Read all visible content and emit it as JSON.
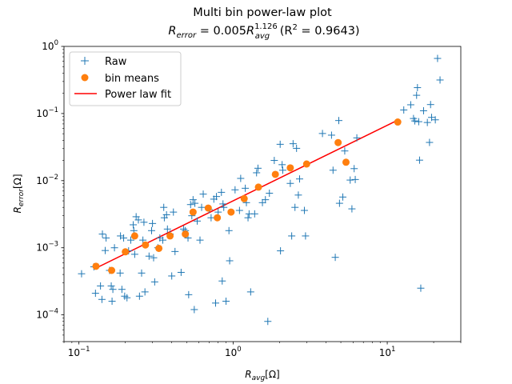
{
  "chart_data": {
    "type": "scatter",
    "title_line1": "Multi bin power-law plot",
    "title_line2": {
      "lhs_main": "R",
      "lhs_sub": "error",
      "eq": " = 0.005",
      "rhs_main": "R",
      "rhs_sub": "avg",
      "rhs_sup": "1.126",
      "r2_text": " (R",
      "r2_sup": "2",
      "r2_tail": " = 0.9643)"
    },
    "xlabel": {
      "main": "R",
      "sub": "avg",
      "unit": "[Ω]"
    },
    "ylabel": {
      "main": "R",
      "sub": "error",
      "unit": "[Ω]"
    },
    "xscale": "log",
    "yscale": "log",
    "xlim": [
      0.08,
      30
    ],
    "ylim": [
      4e-05,
      1
    ],
    "x_ticks": [
      {
        "value": 0.1,
        "base": "10",
        "exp": "−1"
      },
      {
        "value": 1,
        "base": "10",
        "exp": "0"
      },
      {
        "value": 10,
        "base": "10",
        "exp": "1"
      }
    ],
    "y_ticks": [
      {
        "value": 0.0001,
        "base": "10",
        "exp": "−4"
      },
      {
        "value": 0.001,
        "base": "10",
        "exp": "−3"
      },
      {
        "value": 0.01,
        "base": "10",
        "exp": "−2"
      },
      {
        "value": 0.1,
        "base": "10",
        "exp": "−1"
      },
      {
        "value": 1,
        "base": "10",
        "exp": "0"
      }
    ],
    "grid": false,
    "legend_position": "top-left",
    "legend": [
      "Raw",
      "bin means",
      "Power law fit"
    ],
    "colors": {
      "raw": "#1f77b4",
      "bin_means": "#ff7f0e",
      "fit": "#ff0000"
    },
    "raw_points": [
      [
        0.104,
        0.00041
      ],
      [
        0.125,
        0.00052
      ],
      [
        0.128,
        0.00021
      ],
      [
        0.138,
        0.00027
      ],
      [
        0.141,
        0.00017
      ],
      [
        0.142,
        0.0016
      ],
      [
        0.148,
        0.00091
      ],
      [
        0.15,
        0.0014
      ],
      [
        0.158,
        0.00046
      ],
      [
        0.162,
        0.00027
      ],
      [
        0.164,
        0.00016
      ],
      [
        0.166,
        0.00024
      ],
      [
        0.17,
        0.001
      ],
      [
        0.185,
        0.00042
      ],
      [
        0.186,
        0.0015
      ],
      [
        0.19,
        0.00024
      ],
      [
        0.195,
        0.0014
      ],
      [
        0.198,
        0.00019
      ],
      [
        0.205,
        0.00018
      ],
      [
        0.21,
        0.0009
      ],
      [
        0.217,
        0.0013
      ],
      [
        0.225,
        0.0022
      ],
      [
        0.227,
        0.0018
      ],
      [
        0.23,
        0.0008
      ],
      [
        0.235,
        0.0029
      ],
      [
        0.243,
        0.0026
      ],
      [
        0.247,
        0.00019
      ],
      [
        0.255,
        0.00042
      ],
      [
        0.26,
        0.0013
      ],
      [
        0.264,
        0.0024
      ],
      [
        0.268,
        0.00022
      ],
      [
        0.285,
        0.00075
      ],
      [
        0.296,
        0.0018
      ],
      [
        0.3,
        0.0023
      ],
      [
        0.305,
        0.00071
      ],
      [
        0.31,
        0.00031
      ],
      [
        0.325,
        0.001
      ],
      [
        0.335,
        0.0014
      ],
      [
        0.35,
        0.0013
      ],
      [
        0.355,
        0.004
      ],
      [
        0.358,
        0.0028
      ],
      [
        0.37,
        0.0031
      ],
      [
        0.375,
        0.0019
      ],
      [
        0.39,
        0.0016
      ],
      [
        0.4,
        0.00038
      ],
      [
        0.41,
        0.0034
      ],
      [
        0.42,
        0.00088
      ],
      [
        0.46,
        0.00043
      ],
      [
        0.478,
        0.0019
      ],
      [
        0.49,
        0.0018
      ],
      [
        0.51,
        0.0014
      ],
      [
        0.515,
        0.0002
      ],
      [
        0.53,
        0.0044
      ],
      [
        0.54,
        0.003
      ],
      [
        0.55,
        0.0052
      ],
      [
        0.56,
        0.00012
      ],
      [
        0.565,
        0.0046
      ],
      [
        0.585,
        0.0025
      ],
      [
        0.61,
        0.0013
      ],
      [
        0.625,
        0.004
      ],
      [
        0.64,
        0.0063
      ],
      [
        0.7,
        0.0037
      ],
      [
        0.72,
        0.0028
      ],
      [
        0.75,
        0.0053
      ],
      [
        0.77,
        0.00015
      ],
      [
        0.78,
        0.0058
      ],
      [
        0.8,
        0.0034
      ],
      [
        0.84,
        0.0067
      ],
      [
        0.85,
        0.00032
      ],
      [
        0.86,
        0.0045
      ],
      [
        0.87,
        0.004
      ],
      [
        0.9,
        0.00016
      ],
      [
        0.94,
        0.0018
      ],
      [
        0.95,
        0.00064
      ],
      [
        1.03,
        0.0073
      ],
      [
        1.1,
        0.0036
      ],
      [
        1.12,
        0.0108
      ],
      [
        1.2,
        0.0077
      ],
      [
        1.22,
        0.0047
      ],
      [
        1.25,
        0.0028
      ],
      [
        1.27,
        0.0032
      ],
      [
        1.3,
        0.00022
      ],
      [
        1.38,
        0.0032
      ],
      [
        1.42,
        0.0131
      ],
      [
        1.45,
        0.0153
      ],
      [
        1.55,
        0.0047
      ],
      [
        1.62,
        0.0052
      ],
      [
        1.68,
        8e-05
      ],
      [
        1.72,
        0.0065
      ],
      [
        1.85,
        0.02
      ],
      [
        2.02,
        0.0348
      ],
      [
        2.03,
        0.0009
      ],
      [
        2.08,
        0.0173
      ],
      [
        2.1,
        0.0143
      ],
      [
        2.35,
        0.0091
      ],
      [
        2.4,
        0.0015
      ],
      [
        2.45,
        0.0355
      ],
      [
        2.52,
        0.004
      ],
      [
        2.58,
        0.0303
      ],
      [
        2.65,
        0.0061
      ],
      [
        2.7,
        0.0106
      ],
      [
        2.9,
        0.0036
      ],
      [
        2.95,
        0.0015
      ],
      [
        3.8,
        0.0504
      ],
      [
        4.35,
        0.0476
      ],
      [
        4.45,
        0.0143
      ],
      [
        4.6,
        0.00072
      ],
      [
        4.85,
        0.0786
      ],
      [
        4.9,
        0.0046
      ],
      [
        5.15,
        0.0057
      ],
      [
        5.3,
        0.0277
      ],
      [
        5.75,
        0.0102
      ],
      [
        5.9,
        0.0038
      ],
      [
        6.1,
        0.0151
      ],
      [
        6.2,
        0.0104
      ],
      [
        6.35,
        0.0434
      ],
      [
        12.8,
        0.113
      ],
      [
        14.2,
        0.135
      ],
      [
        14.8,
        0.0843
      ],
      [
        15.1,
        0.0776
      ],
      [
        15.5,
        0.187
      ],
      [
        15.7,
        0.243
      ],
      [
        16.0,
        0.0756
      ],
      [
        16.2,
        0.0202
      ],
      [
        16.5,
        0.00025
      ],
      [
        17.2,
        0.11
      ],
      [
        18.2,
        0.0735
      ],
      [
        18.8,
        0.0371
      ],
      [
        19.1,
        0.136
      ],
      [
        19.4,
        0.0876
      ],
      [
        20.5,
        0.0806
      ],
      [
        21.2,
        0.662
      ],
      [
        22.0,
        0.316
      ]
    ],
    "bin_means": [
      [
        0.129,
        0.00053
      ],
      [
        0.163,
        0.00046
      ],
      [
        0.2,
        0.00087
      ],
      [
        0.23,
        0.0015
      ],
      [
        0.27,
        0.0011
      ],
      [
        0.33,
        0.00098
      ],
      [
        0.39,
        0.0015
      ],
      [
        0.49,
        0.0016
      ],
      [
        0.55,
        0.0034
      ],
      [
        0.69,
        0.0039
      ],
      [
        0.79,
        0.0028
      ],
      [
        0.97,
        0.0034
      ],
      [
        1.18,
        0.0054
      ],
      [
        1.46,
        0.008
      ],
      [
        1.88,
        0.0124
      ],
      [
        2.35,
        0.0155
      ],
      [
        3.0,
        0.0177
      ],
      [
        4.8,
        0.0369
      ],
      [
        5.4,
        0.0188
      ],
      [
        11.7,
        0.0747
      ]
    ],
    "fit": {
      "coefficient": 0.005,
      "exponent": 1.126,
      "x_range": [
        0.129,
        11.7
      ]
    }
  }
}
